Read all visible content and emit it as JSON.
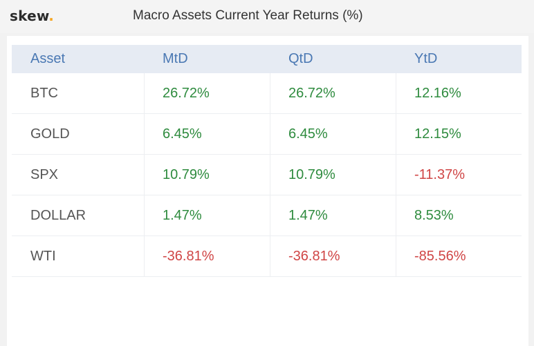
{
  "header": {
    "logo_text": "skew",
    "logo_dot": ".",
    "title": "Macro Assets Current Year Returns (%)"
  },
  "colors": {
    "positive": "#2e8b3e",
    "negative": "#d04545",
    "header_text": "#4a78b3",
    "header_bg": "#e6ebf3",
    "logo_accent": "#f5a623"
  },
  "chart_data": {
    "type": "table",
    "title": "Macro Assets Current Year Returns (%)",
    "columns": [
      "Asset",
      "MtD",
      "QtD",
      "YtD"
    ],
    "rows": [
      {
        "asset": "BTC",
        "mtd": "26.72%",
        "qtd": "26.72%",
        "ytd": "12.16%"
      },
      {
        "asset": "GOLD",
        "mtd": "6.45%",
        "qtd": "6.45%",
        "ytd": "12.15%"
      },
      {
        "asset": "SPX",
        "mtd": "10.79%",
        "qtd": "10.79%",
        "ytd": "-11.37%"
      },
      {
        "asset": "DOLLAR",
        "mtd": "1.47%",
        "qtd": "1.47%",
        "ytd": "8.53%"
      },
      {
        "asset": "WTI",
        "mtd": "-36.81%",
        "qtd": "-36.81%",
        "ytd": "-85.56%"
      }
    ]
  }
}
